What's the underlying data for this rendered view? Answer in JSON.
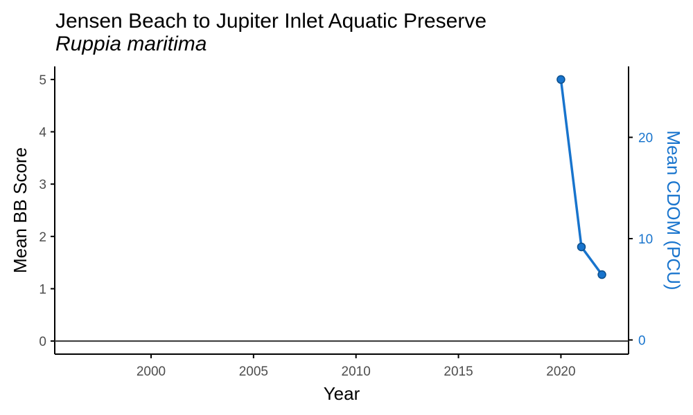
{
  "chart_data": {
    "type": "line",
    "title": "Jensen Beach to Jupiter Inlet Aquatic Preserve",
    "subtitle": "Ruppia maritima",
    "xlabel": "Year",
    "ylabel": "Mean BB Score",
    "y2label": "Mean CDOM (PCU)",
    "xlim": [
      1995.3,
      2023.3
    ],
    "ylim": [
      -0.25,
      5.25
    ],
    "y2lim": [
      -1.4,
      27.0
    ],
    "x_ticks": [
      2000,
      2005,
      2010,
      2015,
      2020
    ],
    "y_ticks": [
      0,
      1,
      2,
      3,
      4,
      5
    ],
    "y2_ticks": [
      0,
      10,
      20
    ],
    "grid": false,
    "colors": {
      "series": "#1874CD",
      "point_outline": "#0D4F8B",
      "axis": "#000000",
      "tick_text": "#4D4D4D",
      "zero_line": "#333333"
    },
    "reference_line_y": 0,
    "series": [
      {
        "x": [
          2020,
          2021,
          2022
        ],
        "y": [
          5.0,
          1.8,
          1.27
        ]
      }
    ]
  }
}
